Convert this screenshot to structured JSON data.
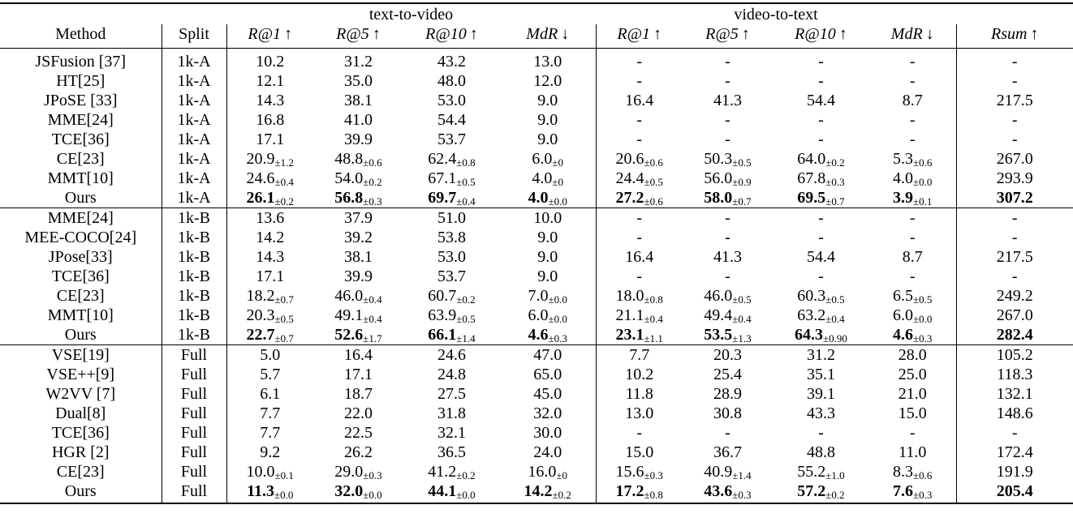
{
  "table": {
    "group_headers": [
      "text-to-video",
      "video-to-text"
    ],
    "columns": [
      "Method",
      "Split",
      "R@1",
      "R@5",
      "R@10",
      "MdR",
      "R@1",
      "R@5",
      "R@10",
      "MdR",
      "Rsum"
    ],
    "column_arrows": [
      "",
      "",
      "↑",
      "↑",
      "↑",
      "↓",
      "↑",
      "↑",
      "↑",
      "↓",
      "↑"
    ],
    "sections": [
      {
        "name": "1k-A",
        "rows": [
          {
            "method": "JSFusion [37]",
            "split": "1k-A",
            "cells": [
              [
                "10.2",
                ""
              ],
              [
                "31.2",
                ""
              ],
              [
                "43.2",
                ""
              ],
              [
                "13.0",
                ""
              ],
              [
                "-",
                ""
              ],
              [
                "-",
                ""
              ],
              [
                "-",
                ""
              ],
              [
                "-",
                ""
              ],
              [
                "-",
                ""
              ]
            ]
          },
          {
            "method": "HT[25]",
            "split": "1k-A",
            "cells": [
              [
                "12.1",
                ""
              ],
              [
                "35.0",
                ""
              ],
              [
                "48.0",
                ""
              ],
              [
                "12.0",
                ""
              ],
              [
                "-",
                ""
              ],
              [
                "-",
                ""
              ],
              [
                "-",
                ""
              ],
              [
                "-",
                ""
              ],
              [
                "-",
                ""
              ]
            ]
          },
          {
            "method": "JPoSE [33]",
            "split": "1k-A",
            "cells": [
              [
                "14.3",
                ""
              ],
              [
                "38.1",
                ""
              ],
              [
                "53.0",
                ""
              ],
              [
                "9.0",
                ""
              ],
              [
                "16.4",
                ""
              ],
              [
                "41.3",
                ""
              ],
              [
                "54.4",
                ""
              ],
              [
                "8.7",
                ""
              ],
              [
                "217.5",
                ""
              ]
            ]
          },
          {
            "method": "MME[24]",
            "split": "1k-A",
            "cells": [
              [
                "16.8",
                ""
              ],
              [
                "41.0",
                ""
              ],
              [
                "54.4",
                ""
              ],
              [
                "9.0",
                ""
              ],
              [
                "-",
                ""
              ],
              [
                "-",
                ""
              ],
              [
                "-",
                ""
              ],
              [
                "-",
                ""
              ],
              [
                "-",
                ""
              ]
            ]
          },
          {
            "method": "TCE[36]",
            "split": "1k-A",
            "cells": [
              [
                "17.1",
                ""
              ],
              [
                "39.9",
                ""
              ],
              [
                "53.7",
                ""
              ],
              [
                "9.0",
                ""
              ],
              [
                "-",
                ""
              ],
              [
                "-",
                ""
              ],
              [
                "-",
                ""
              ],
              [
                "-",
                ""
              ],
              [
                "-",
                ""
              ]
            ]
          },
          {
            "method": "CE[23]",
            "split": "1k-A",
            "cells": [
              [
                "20.9",
                "±1.2"
              ],
              [
                "48.8",
                "±0.6"
              ],
              [
                "62.4",
                "±0.8"
              ],
              [
                "6.0",
                "±0"
              ],
              [
                "20.6",
                "±0.6"
              ],
              [
                "50.3",
                "±0.5"
              ],
              [
                "64.0",
                "±0.2"
              ],
              [
                "5.3",
                "±0.6"
              ],
              [
                "267.0",
                ""
              ]
            ]
          },
          {
            "method": "MMT[10]",
            "split": "1k-A",
            "cells": [
              [
                "24.6",
                "±0.4"
              ],
              [
                "54.0",
                "±0.2"
              ],
              [
                "67.1",
                "±0.5"
              ],
              [
                "4.0",
                "±0"
              ],
              [
                "24.4",
                "±0.5"
              ],
              [
                "56.0",
                "±0.9"
              ],
              [
                "67.8",
                "±0.3"
              ],
              [
                "4.0",
                "±0.0"
              ],
              [
                "293.9",
                ""
              ]
            ]
          },
          {
            "method": "Ours",
            "split": "1k-A",
            "bold": true,
            "cells": [
              [
                "26.1",
                "±0.2"
              ],
              [
                "56.8",
                "±0.3"
              ],
              [
                "69.7",
                "±0.4"
              ],
              [
                "4.0",
                "±0.0"
              ],
              [
                "27.2",
                "±0.6"
              ],
              [
                "58.0",
                "±0.7"
              ],
              [
                "69.5",
                "±0.7"
              ],
              [
                "3.9",
                "±0.1"
              ],
              [
                "307.2",
                ""
              ]
            ]
          }
        ]
      },
      {
        "name": "1k-B",
        "rows": [
          {
            "method": "MME[24]",
            "split": "1k-B",
            "cells": [
              [
                "13.6",
                ""
              ],
              [
                "37.9",
                ""
              ],
              [
                "51.0",
                ""
              ],
              [
                "10.0",
                ""
              ],
              [
                "-",
                ""
              ],
              [
                "-",
                ""
              ],
              [
                "-",
                ""
              ],
              [
                "-",
                ""
              ],
              [
                "-",
                ""
              ]
            ]
          },
          {
            "method": "MEE-COCO[24]",
            "split": "1k-B",
            "cells": [
              [
                "14.2",
                ""
              ],
              [
                "39.2",
                ""
              ],
              [
                "53.8",
                ""
              ],
              [
                "9.0",
                ""
              ],
              [
                "-",
                ""
              ],
              [
                "-",
                ""
              ],
              [
                "-",
                ""
              ],
              [
                "-",
                ""
              ],
              [
                "-",
                ""
              ]
            ]
          },
          {
            "method": "JPose[33]",
            "split": "1k-B",
            "cells": [
              [
                "14.3",
                ""
              ],
              [
                "38.1",
                ""
              ],
              [
                "53.0",
                ""
              ],
              [
                "9.0",
                ""
              ],
              [
                "16.4",
                ""
              ],
              [
                "41.3",
                ""
              ],
              [
                "54.4",
                ""
              ],
              [
                "8.7",
                ""
              ],
              [
                "217.5",
                ""
              ]
            ]
          },
          {
            "method": "TCE[36]",
            "split": "1k-B",
            "cells": [
              [
                "17.1",
                ""
              ],
              [
                "39.9",
                ""
              ],
              [
                "53.7",
                ""
              ],
              [
                "9.0",
                ""
              ],
              [
                "-",
                ""
              ],
              [
                "-",
                ""
              ],
              [
                "-",
                ""
              ],
              [
                "-",
                ""
              ],
              [
                "-",
                ""
              ]
            ]
          },
          {
            "method": "CE[23]",
            "split": "1k-B",
            "cells": [
              [
                "18.2",
                "±0.7"
              ],
              [
                "46.0",
                "±0.4"
              ],
              [
                "60.7",
                "±0.2"
              ],
              [
                "7.0",
                "±0.0"
              ],
              [
                "18.0",
                "±0.8"
              ],
              [
                "46.0",
                "±0.5"
              ],
              [
                "60.3",
                "±0.5"
              ],
              [
                "6.5",
                "±0.5"
              ],
              [
                "249.2",
                ""
              ]
            ]
          },
          {
            "method": "MMT[10]",
            "split": "1k-B",
            "cells": [
              [
                "20.3",
                "±0.5"
              ],
              [
                "49.1",
                "±0.4"
              ],
              [
                "63.9",
                "±0.5"
              ],
              [
                "6.0",
                "±0.0"
              ],
              [
                "21.1",
                "±0.4"
              ],
              [
                "49.4",
                "±0.4"
              ],
              [
                "63.2",
                "±0.4"
              ],
              [
                "6.0",
                "±0.0"
              ],
              [
                "267.0",
                ""
              ]
            ]
          },
          {
            "method": "Ours",
            "split": "1k-B",
            "bold": true,
            "cells": [
              [
                "22.7",
                "±0.7"
              ],
              [
                "52.6",
                "±1.7"
              ],
              [
                "66.1",
                "±1.4"
              ],
              [
                "4.6",
                "±0.3"
              ],
              [
                "23.1",
                "±1.1"
              ],
              [
                "53.5",
                "±1.3"
              ],
              [
                "64.3",
                "±0.90"
              ],
              [
                "4.6",
                "±0.3"
              ],
              [
                "282.4",
                ""
              ]
            ]
          }
        ]
      },
      {
        "name": "Full",
        "rows": [
          {
            "method": "VSE[19]",
            "split": "Full",
            "cells": [
              [
                "5.0",
                ""
              ],
              [
                "16.4",
                ""
              ],
              [
                "24.6",
                ""
              ],
              [
                "47.0",
                ""
              ],
              [
                "7.7",
                ""
              ],
              [
                "20.3",
                ""
              ],
              [
                "31.2",
                ""
              ],
              [
                "28.0",
                ""
              ],
              [
                "105.2",
                ""
              ]
            ]
          },
          {
            "method": "VSE++[9]",
            "split": "Full",
            "cells": [
              [
                "5.7",
                ""
              ],
              [
                "17.1",
                ""
              ],
              [
                "24.8",
                ""
              ],
              [
                "65.0",
                ""
              ],
              [
                "10.2",
                ""
              ],
              [
                "25.4",
                ""
              ],
              [
                "35.1",
                ""
              ],
              [
                "25.0",
                ""
              ],
              [
                "118.3",
                ""
              ]
            ]
          },
          {
            "method": "W2VV [7]",
            "split": "Full",
            "cells": [
              [
                "6.1",
                ""
              ],
              [
                "18.7",
                ""
              ],
              [
                "27.5",
                ""
              ],
              [
                "45.0",
                ""
              ],
              [
                "11.8",
                ""
              ],
              [
                "28.9",
                ""
              ],
              [
                "39.1",
                ""
              ],
              [
                "21.0",
                ""
              ],
              [
                "132.1",
                ""
              ]
            ]
          },
          {
            "method": "Dual[8]",
            "split": "Full",
            "cells": [
              [
                "7.7",
                ""
              ],
              [
                "22.0",
                ""
              ],
              [
                "31.8",
                ""
              ],
              [
                "32.0",
                ""
              ],
              [
                "13.0",
                ""
              ],
              [
                "30.8",
                ""
              ],
              [
                "43.3",
                ""
              ],
              [
                "15.0",
                ""
              ],
              [
                "148.6",
                ""
              ]
            ]
          },
          {
            "method": "TCE[36]",
            "split": "Full",
            "cells": [
              [
                "7.7",
                ""
              ],
              [
                "22.5",
                ""
              ],
              [
                "32.1",
                ""
              ],
              [
                "30.0",
                ""
              ],
              [
                "-",
                ""
              ],
              [
                "-",
                ""
              ],
              [
                "-",
                ""
              ],
              [
                "-",
                ""
              ],
              [
                "-",
                ""
              ]
            ]
          },
          {
            "method": "HGR [2]",
            "split": "Full",
            "cells": [
              [
                "9.2",
                ""
              ],
              [
                "26.2",
                ""
              ],
              [
                "36.5",
                ""
              ],
              [
                "24.0",
                ""
              ],
              [
                "15.0",
                ""
              ],
              [
                "36.7",
                ""
              ],
              [
                "48.8",
                ""
              ],
              [
                "11.0",
                ""
              ],
              [
                "172.4",
                ""
              ]
            ]
          },
          {
            "method": "CE[23]",
            "split": "Full",
            "cells": [
              [
                "10.0",
                "±0.1"
              ],
              [
                "29.0",
                "±0.3"
              ],
              [
                "41.2",
                "±0.2"
              ],
              [
                "16.0",
                "±0"
              ],
              [
                "15.6",
                "±0.3"
              ],
              [
                "40.9",
                "±1.4"
              ],
              [
                "55.2",
                "±1.0"
              ],
              [
                "8.3",
                "±0.6"
              ],
              [
                "191.9",
                ""
              ]
            ]
          },
          {
            "method": "Ours",
            "split": "Full",
            "bold": true,
            "cells": [
              [
                "11.3",
                "±0.0"
              ],
              [
                "32.0",
                "±0.0"
              ],
              [
                "44.1",
                "±0.0"
              ],
              [
                "14.2",
                "±0.2"
              ],
              [
                "17.2",
                "±0.8"
              ],
              [
                "43.6",
                "±0.3"
              ],
              [
                "57.2",
                "±0.2"
              ],
              [
                "7.6",
                "±0.3"
              ],
              [
                "205.4",
                ""
              ]
            ]
          }
        ]
      }
    ]
  }
}
